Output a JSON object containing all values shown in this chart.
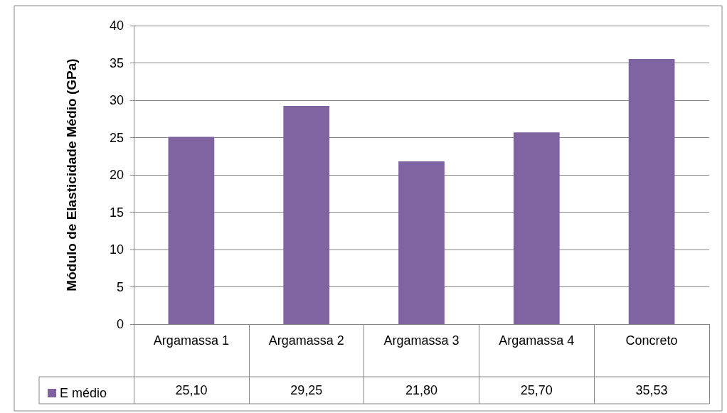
{
  "chart_data": {
    "type": "bar",
    "ylabel": "Módulo de Elasticidade Médio (GPa)",
    "categories": [
      "Argamassa 1",
      "Argamassa 2",
      "Argamassa 3",
      "Argamassa 4",
      "Concreto"
    ],
    "series": [
      {
        "name": "E médio",
        "color": "#8064a2",
        "values": [
          25.1,
          29.25,
          21.8,
          25.7,
          35.53
        ],
        "value_labels": [
          "25,10",
          "29,25",
          "21,80",
          "25,70",
          "35,53"
        ]
      }
    ],
    "ylim": [
      0,
      40
    ],
    "yticks": [
      0,
      5,
      10,
      15,
      20,
      25,
      30,
      35,
      40
    ],
    "grid": "y",
    "legend": "bottom left"
  }
}
